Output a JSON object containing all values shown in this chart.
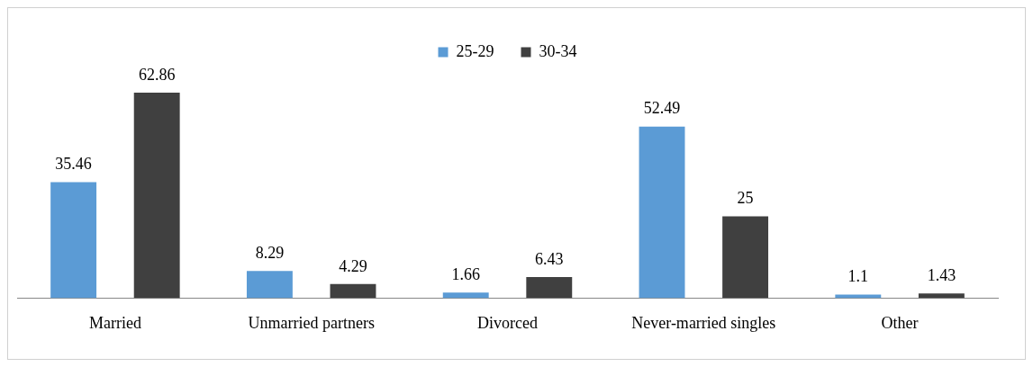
{
  "chart_data": {
    "type": "bar",
    "categories": [
      "Married",
      "Unmarried partners",
      "Divorced",
      "Never-married singles",
      "Other"
    ],
    "series": [
      {
        "name": "25-29",
        "color": "#5b9bd5",
        "values": [
          35.46,
          8.29,
          1.66,
          52.49,
          1.1
        ]
      },
      {
        "name": "30-34",
        "color": "#404040",
        "values": [
          62.86,
          4.29,
          6.43,
          25,
          1.43
        ]
      }
    ],
    "data_labels": true,
    "legend": "top",
    "grid": false,
    "tick_labels": "x"
  }
}
